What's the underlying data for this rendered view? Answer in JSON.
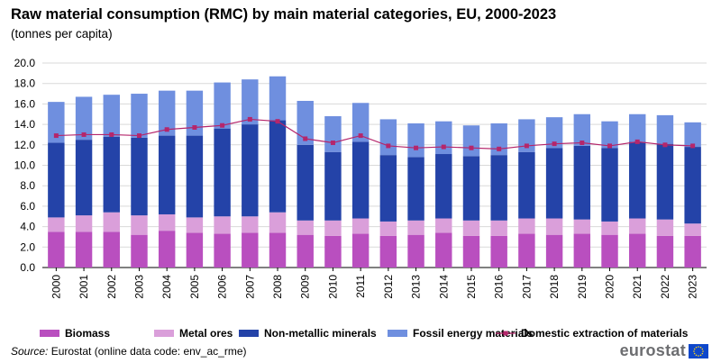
{
  "header": {
    "title": "Raw material consumption (RMC) by main material categories, EU, 2000-2023",
    "subtitle": "(tonnes per capita)"
  },
  "footer": {
    "source_label": "Source:",
    "source_text": " Eurostat (online data code: env_ac_rme)",
    "logo_text": "eurostat"
  },
  "colors": {
    "biomass": "#b94fbf",
    "metal_ores": "#da9fda",
    "non_metallic_minerals": "#2443a8",
    "fossil_energy": "#6f8fdf",
    "domestic_extraction": "#b5266b",
    "grid": "#d9d9d9",
    "flag": "#0e47cb",
    "flag_stars": "#ffd617"
  },
  "chart_data": {
    "type": "bar",
    "stacked": true,
    "title": "Raw material consumption (RMC) by main material categories, EU, 2000-2023",
    "subtitle": "(tonnes per capita)",
    "xlabel": "",
    "ylabel": "",
    "ylim": [
      0,
      20
    ],
    "yticks": [
      "0.0",
      "2.0",
      "4.0",
      "6.0",
      "8.0",
      "10.0",
      "12.0",
      "14.0",
      "16.0",
      "18.0",
      "20.0"
    ],
    "grid": true,
    "legend_position": "bottom",
    "categories": [
      "2000",
      "2001",
      "2002",
      "2003",
      "2004",
      "2005",
      "2006",
      "2007",
      "2008",
      "2009",
      "2010",
      "2011",
      "2012",
      "2013",
      "2014",
      "2015",
      "2016",
      "2017",
      "2018",
      "2019",
      "2020",
      "2021",
      "2022",
      "2023"
    ],
    "series": [
      {
        "name": "Biomass",
        "type": "bar",
        "color": "#b94fbf",
        "values": [
          3.5,
          3.5,
          3.5,
          3.2,
          3.6,
          3.4,
          3.3,
          3.4,
          3.4,
          3.2,
          3.1,
          3.3,
          3.1,
          3.2,
          3.4,
          3.1,
          3.1,
          3.3,
          3.2,
          3.3,
          3.2,
          3.3,
          3.1,
          3.1
        ]
      },
      {
        "name": "Metal ores",
        "type": "bar",
        "color": "#da9fda",
        "values": [
          1.4,
          1.6,
          1.9,
          1.9,
          1.6,
          1.5,
          1.7,
          1.6,
          2.0,
          1.4,
          1.5,
          1.5,
          1.4,
          1.4,
          1.4,
          1.5,
          1.5,
          1.5,
          1.6,
          1.4,
          1.3,
          1.5,
          1.6,
          1.2
        ]
      },
      {
        "name": "Non-metallic minerals",
        "type": "bar",
        "color": "#2443a8",
        "values": [
          7.3,
          7.4,
          7.4,
          7.6,
          7.7,
          8.0,
          8.6,
          9.0,
          9.0,
          7.4,
          6.7,
          7.5,
          6.5,
          6.2,
          6.3,
          6.3,
          6.4,
          6.5,
          6.9,
          7.2,
          7.2,
          7.5,
          7.4,
          7.5
        ]
      },
      {
        "name": "Fossil energy materials",
        "type": "bar",
        "color": "#6f8fdf",
        "values": [
          4.0,
          4.2,
          4.1,
          4.3,
          4.4,
          4.4,
          4.5,
          4.4,
          4.3,
          4.3,
          3.5,
          3.8,
          3.5,
          3.3,
          3.2,
          3.0,
          3.1,
          3.2,
          3.0,
          3.1,
          2.6,
          2.7,
          2.8,
          2.4
        ]
      },
      {
        "name": "Domestic extraction of materials",
        "type": "line",
        "color": "#b5266b",
        "values": [
          12.9,
          13.0,
          13.0,
          12.9,
          13.5,
          13.7,
          13.9,
          14.5,
          14.3,
          12.6,
          12.2,
          12.9,
          11.9,
          11.7,
          11.8,
          11.7,
          11.6,
          11.9,
          12.1,
          12.2,
          11.9,
          12.3,
          12.0,
          11.9
        ]
      }
    ]
  }
}
